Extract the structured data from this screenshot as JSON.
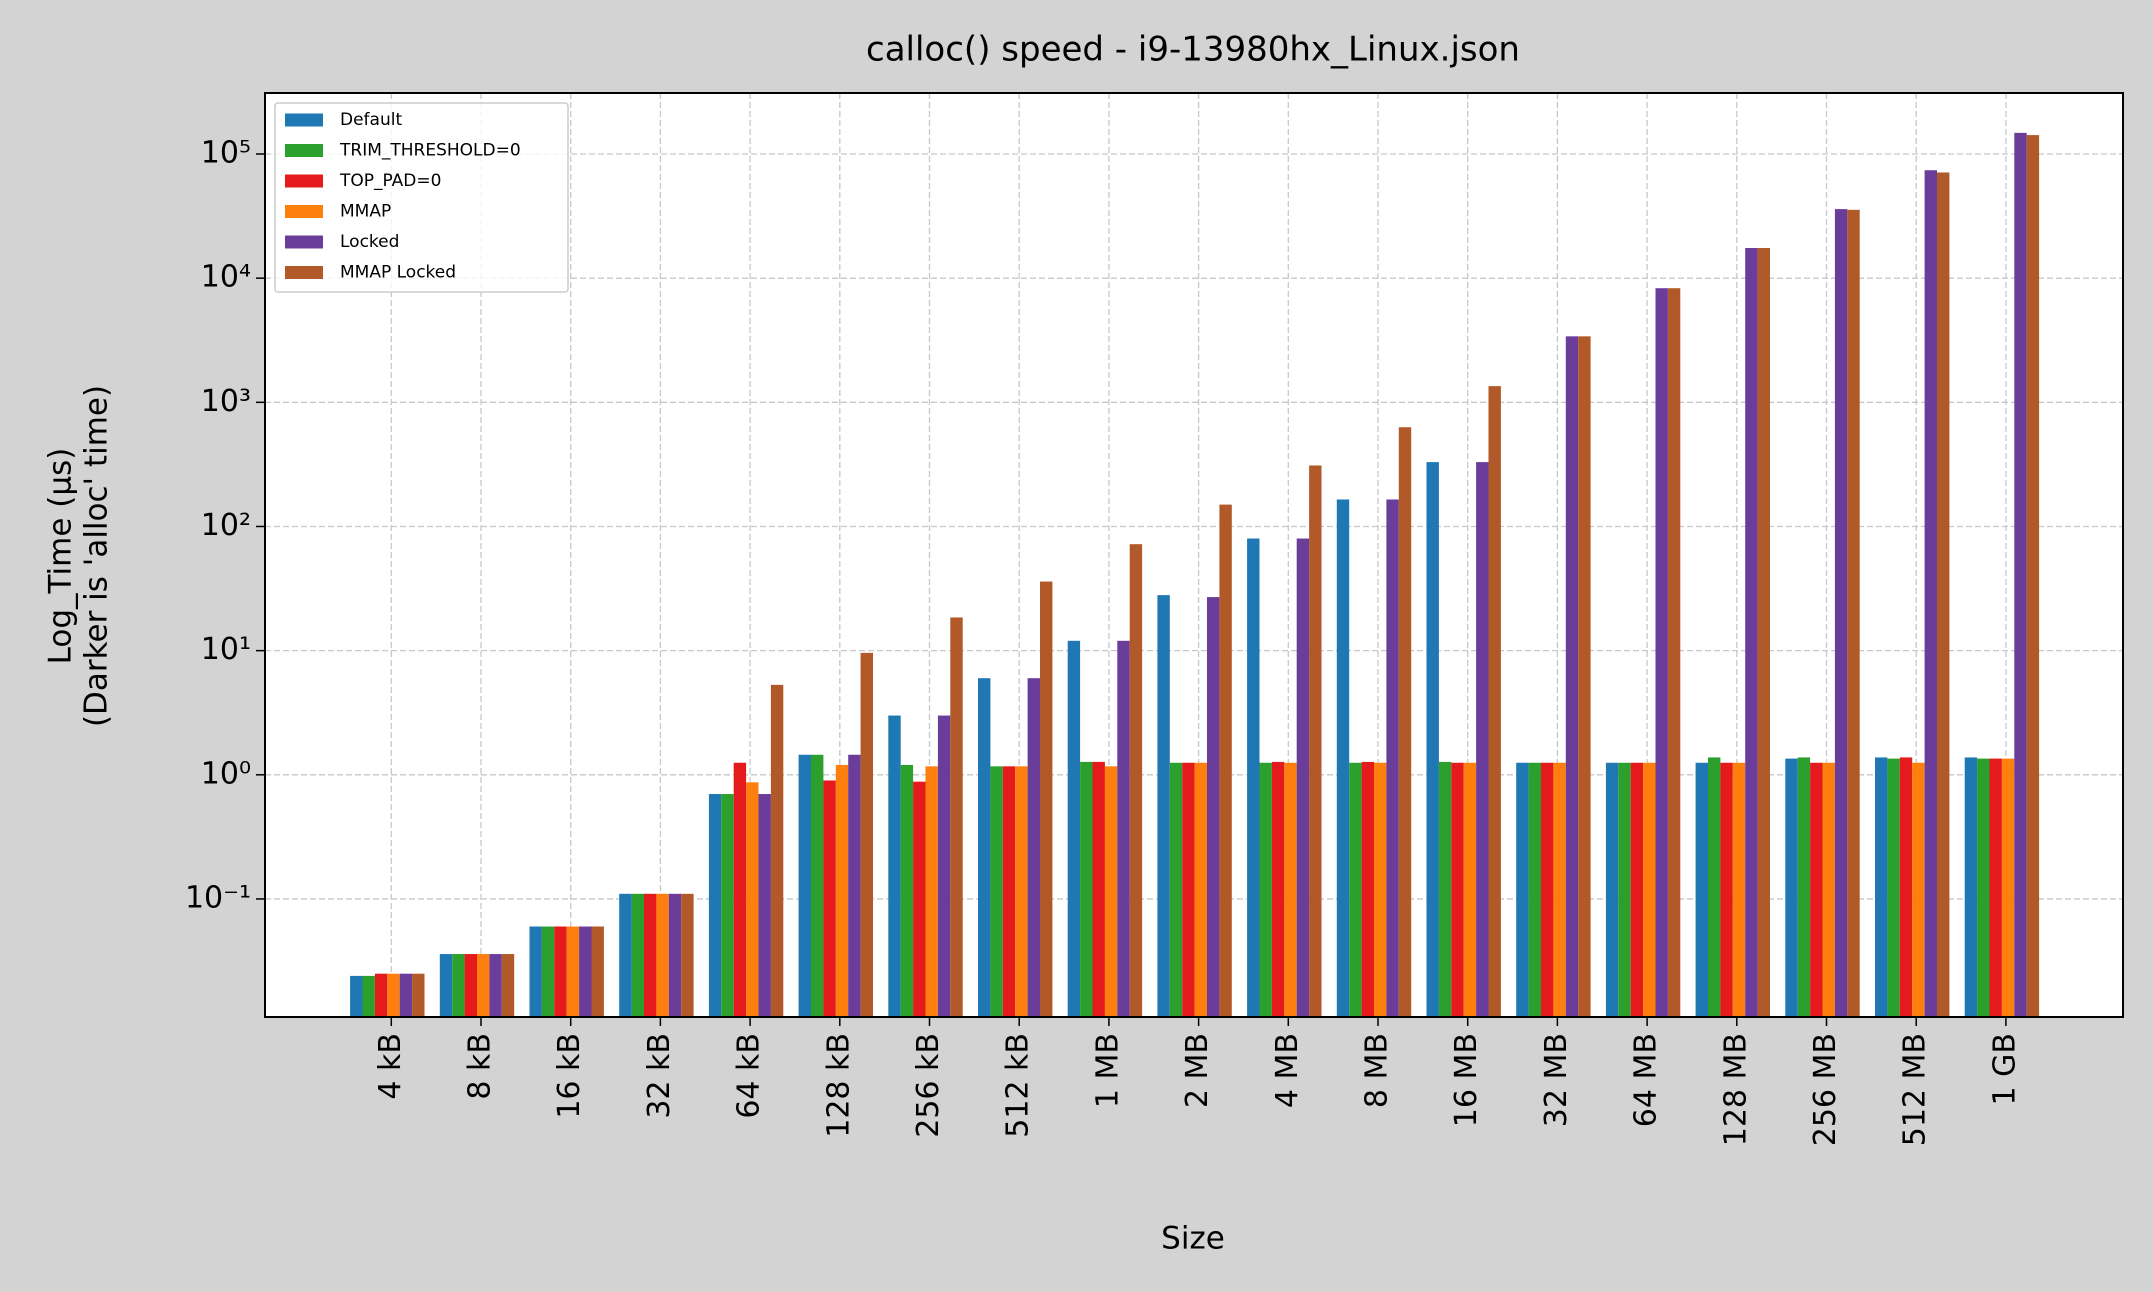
{
  "chart_data": {
    "type": "bar",
    "title": "calloc() speed - i9-13980hx_Linux.json",
    "x_label": "Size",
    "y_label": [
      "Log_Time (µs)",
      "(Darker is 'alloc' time)"
    ],
    "log_y": true,
    "grid": true,
    "legend": "upper left",
    "categories": [
      "4 kB",
      "8 kB",
      "16 kB",
      "32 kB",
      "64 kB",
      "128 kB",
      "256 kB",
      "512 kB",
      "1 MB",
      "2 MB",
      "4 MB",
      "8 MB",
      "16 MB",
      "32 MB",
      "64 MB",
      "128 MB",
      "256 MB",
      "512 MB",
      "1 GB"
    ],
    "ylim": [
      0.0112,
      310000
    ],
    "yticks": [
      {
        "value": 0.1,
        "label": "10⁻¹"
      },
      {
        "value": 1,
        "label": "10⁰"
      },
      {
        "value": 10,
        "label": "10¹"
      },
      {
        "value": 100,
        "label": "10²"
      },
      {
        "value": 1000,
        "label": "10³"
      },
      {
        "value": 10000,
        "label": "10⁴"
      },
      {
        "value": 100000,
        "label": "10⁵"
      }
    ],
    "series": [
      {
        "name": "Default",
        "color": "#1f77b4",
        "values": [
          0.024,
          0.036,
          0.06,
          0.11,
          0.7,
          1.45,
          3.0,
          6.0,
          12,
          28,
          80,
          165,
          330,
          1.25,
          1.25,
          1.25,
          1.35,
          1.38,
          1.38
        ]
      },
      {
        "name": "TRIM_THRESHOLD=0",
        "color": "#2ca02c",
        "values": [
          0.024,
          0.036,
          0.06,
          0.11,
          0.7,
          1.45,
          1.2,
          1.17,
          1.27,
          1.25,
          1.25,
          1.25,
          1.27,
          1.25,
          1.25,
          1.38,
          1.38,
          1.35,
          1.35
        ]
      },
      {
        "name": "TOP_PAD=0",
        "color": "#e41a1c",
        "values": [
          0.025,
          0.036,
          0.06,
          0.11,
          1.25,
          0.9,
          0.88,
          1.17,
          1.27,
          1.25,
          1.27,
          1.27,
          1.25,
          1.25,
          1.25,
          1.25,
          1.25,
          1.38,
          1.35
        ]
      },
      {
        "name": "MMAP",
        "color": "#ff7f0e",
        "values": [
          0.025,
          0.036,
          0.06,
          0.11,
          0.87,
          1.2,
          1.17,
          1.17,
          1.17,
          1.25,
          1.25,
          1.25,
          1.25,
          1.25,
          1.25,
          1.25,
          1.25,
          1.25,
          1.35
        ]
      },
      {
        "name": "Locked",
        "color": "#6a3d9a",
        "values": [
          0.025,
          0.036,
          0.06,
          0.11,
          0.7,
          1.45,
          3.0,
          6.0,
          12,
          27,
          80,
          165,
          330,
          3400,
          8300,
          17500,
          36000,
          74000,
          148000
        ]
      },
      {
        "name": "MMAP Locked",
        "color": "#b15928",
        "values": [
          0.025,
          0.036,
          0.06,
          0.11,
          5.3,
          9.6,
          18.5,
          36,
          72,
          150,
          310,
          630,
          1350,
          3400,
          8300,
          17500,
          35500,
          71000,
          142000
        ]
      }
    ]
  }
}
